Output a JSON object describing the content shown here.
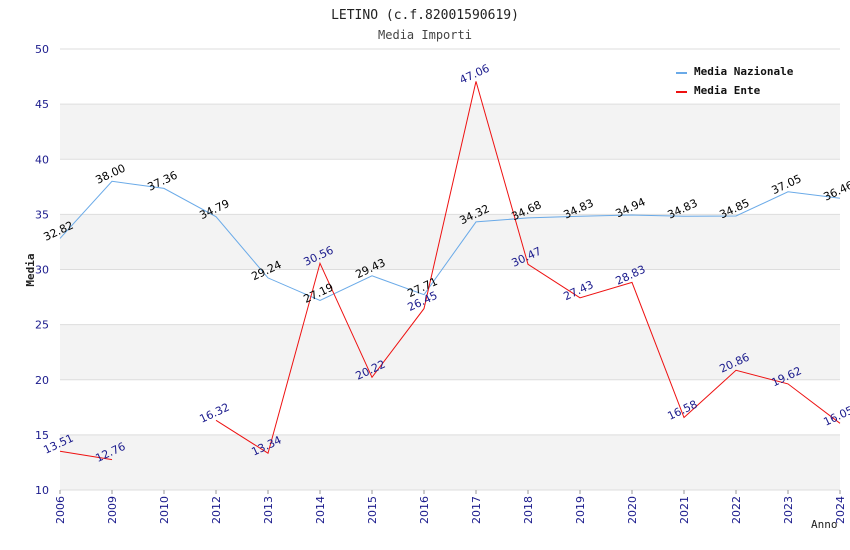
{
  "chart_data": {
    "type": "line",
    "title": "LETINO (c.f.82001590619)",
    "subtitle": "Media Importi",
    "xlabel": "Anno",
    "ylabel": "Media",
    "ylim": [
      10,
      50
    ],
    "yticks": [
      "10",
      "15",
      "20",
      "25",
      "30",
      "35",
      "40",
      "45",
      "50"
    ],
    "categories": [
      "2006",
      "2009",
      "2010",
      "2012",
      "2013",
      "2014",
      "2015",
      "2016",
      "2017",
      "2018",
      "2019",
      "2020",
      "2021",
      "2022",
      "2023",
      "2024"
    ],
    "legend_position": "top-right",
    "grid": true,
    "series": [
      {
        "name": "Media Nazionale",
        "color": "#6aaae8",
        "label_color": "#000000",
        "values": [
          32.82,
          38.0,
          37.36,
          34.79,
          29.24,
          27.19,
          29.43,
          27.71,
          34.32,
          34.68,
          34.83,
          34.94,
          34.83,
          34.85,
          37.05,
          36.46
        ],
        "labels": [
          "32.82",
          "38.00",
          "37.36",
          "34.79",
          "29.24",
          "27.19",
          "29.43",
          "27.71",
          "34.32",
          "34.68",
          "34.83",
          "34.94",
          "34.83",
          "34.85",
          "37.05",
          "36.46"
        ]
      },
      {
        "name": "Media Ente",
        "color": "#ee1111",
        "label_color": "#1a1a8c",
        "values": [
          13.51,
          12.76,
          null,
          16.32,
          13.34,
          30.56,
          20.22,
          26.45,
          47.06,
          30.47,
          27.43,
          28.83,
          16.58,
          20.86,
          19.62,
          16.05
        ],
        "labels": [
          "13.51",
          "12.76",
          "",
          "16.32",
          "13.34",
          "30.56",
          "20.22",
          "26.45",
          "47.06",
          "30.47",
          "27.43",
          "28.83",
          "16.58",
          "20.86",
          "19.62",
          "16.05"
        ]
      }
    ]
  }
}
